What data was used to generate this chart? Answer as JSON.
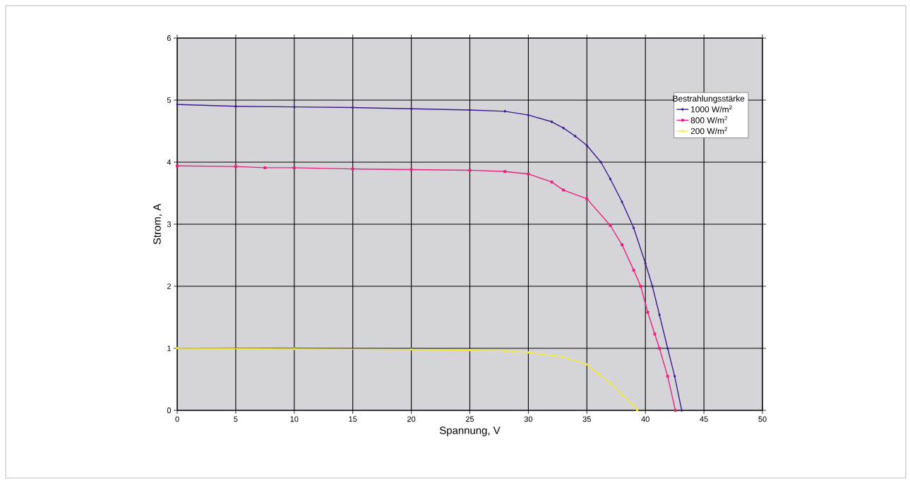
{
  "chart_data": {
    "type": "line",
    "xlabel": "Spannung, V",
    "ylabel": "Strom, A",
    "legend_title": "Bestrahlungsstärke",
    "xlim": [
      0,
      50
    ],
    "xticks": [
      0,
      5,
      10,
      15,
      20,
      25,
      30,
      35,
      40,
      45,
      50
    ],
    "ylim": [
      0,
      6
    ],
    "yticks": [
      0,
      1,
      2,
      3,
      4,
      5,
      6
    ],
    "grid": true,
    "legend": "top right",
    "line_style": "solid",
    "series": [
      {
        "name": "1000 W/m$^{2}$",
        "color": "#3d1a8c",
        "marker": "diamond",
        "x": [
          0,
          5,
          10,
          15,
          20,
          25,
          28,
          30,
          32,
          33,
          34,
          35,
          36.2,
          37,
          38,
          39,
          40,
          40.6,
          41.2,
          41.9,
          42.5,
          43.1
        ],
        "values": [
          4.93,
          4.9,
          4.89,
          4.88,
          4.86,
          4.84,
          4.82,
          4.76,
          4.65,
          4.55,
          4.42,
          4.27,
          4.0,
          3.73,
          3.36,
          2.94,
          2.37,
          2.0,
          1.54,
          1.0,
          0.55,
          0
        ]
      },
      {
        "name": "800 W/m$^{2}$",
        "color": "#e8227f",
        "marker": "square",
        "x": [
          0,
          5,
          7.5,
          10,
          15,
          20,
          25,
          28,
          30,
          32,
          33,
          35,
          37,
          38,
          39,
          39.6,
          40.2,
          40.8,
          41.2,
          41.9,
          42.56
        ],
        "values": [
          3.94,
          3.93,
          3.91,
          3.91,
          3.89,
          3.88,
          3.87,
          3.85,
          3.81,
          3.68,
          3.55,
          3.41,
          2.98,
          2.67,
          2.26,
          2.0,
          1.58,
          1.23,
          1.0,
          0.55,
          0
        ]
      },
      {
        "name": "200 W/m$^{2}$",
        "color": "#f5ec2a",
        "marker": "triangle",
        "x": [
          0,
          10,
          20,
          25,
          28,
          30,
          33,
          35,
          36,
          37,
          38,
          39,
          39.3
        ],
        "values": [
          1.0,
          0.99,
          0.98,
          0.97,
          0.96,
          0.93,
          0.86,
          0.74,
          0.59,
          0.44,
          0.25,
          0.08,
          0
        ]
      }
    ]
  }
}
